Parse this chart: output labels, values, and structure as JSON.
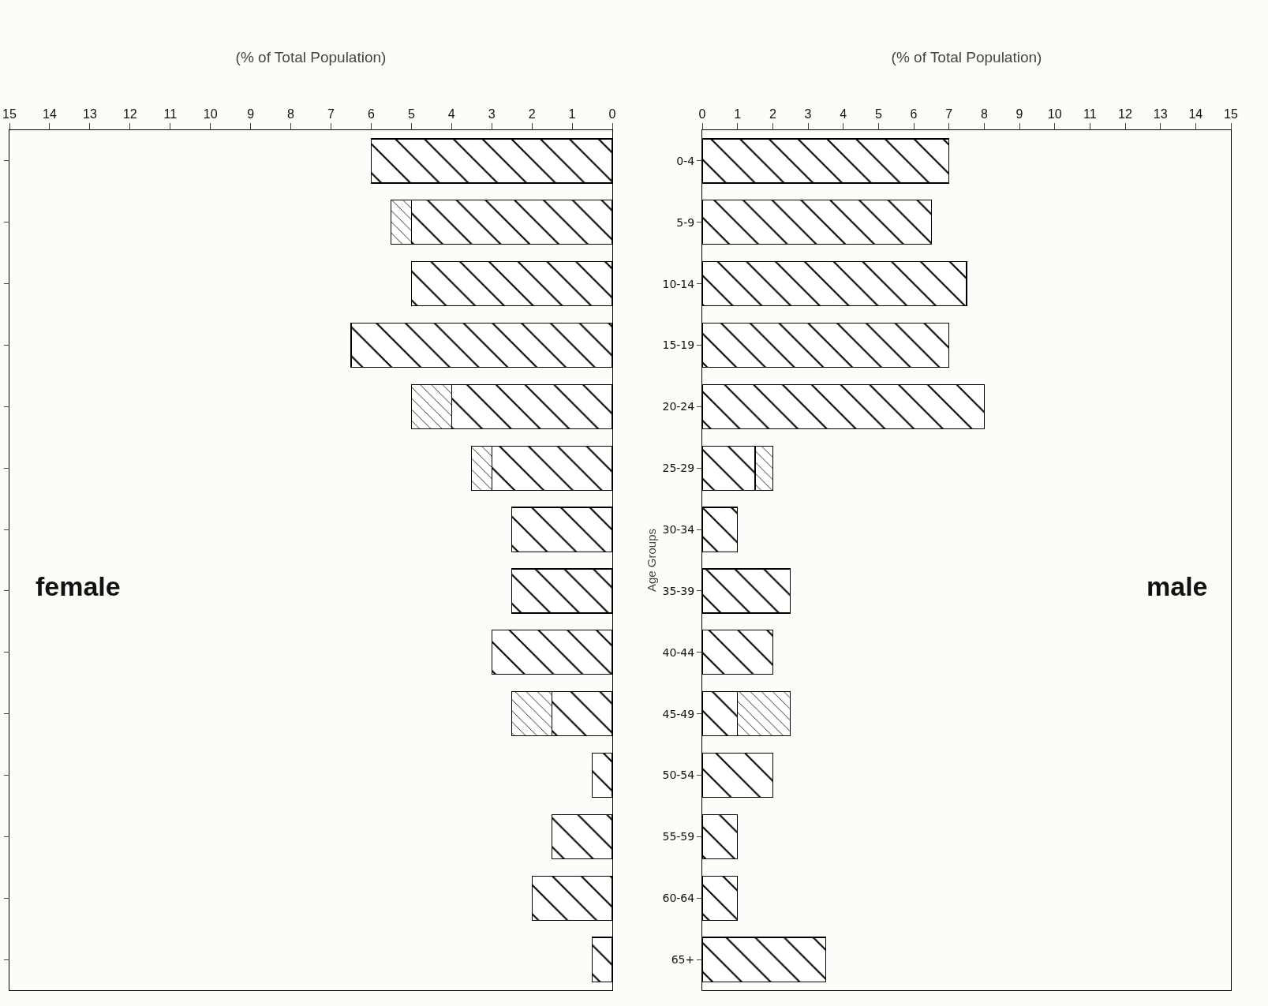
{
  "chart_data": [
    {
      "type": "bar",
      "orientation": "horizontal",
      "stacked": true,
      "xlabel": "(% of Total Population)",
      "annotations": [
        "female"
      ],
      "categories": [
        null,
        null,
        null,
        null,
        null,
        null,
        null,
        null,
        null,
        null,
        null,
        null,
        null,
        null
      ],
      "series": [
        {
          "color": "#000000",
          "values": [
            6,
            5,
            5,
            6.5,
            4,
            3,
            2.5,
            2.5,
            3,
            1.5,
            0.5,
            1.5,
            2,
            0.5
          ]
        },
        {
          "color": "#000000",
          "values": [
            0,
            0.5,
            0,
            0,
            1,
            0.5,
            0,
            0,
            0,
            1,
            0,
            0,
            0,
            0
          ]
        }
      ],
      "xlim": [
        15,
        0
      ],
      "xticks": [
        0,
        1,
        2,
        3,
        4,
        5,
        6,
        7,
        8,
        9,
        10,
        11,
        12,
        13,
        14,
        15
      ],
      "tick_labels": "x",
      "grid": false
    },
    {
      "type": "bar",
      "orientation": "horizontal",
      "stacked": true,
      "xlabel": "(% of Total Population)",
      "ylabel": "Age Groups",
      "annotations": [
        "male"
      ],
      "categories": [
        "0-4",
        "5-9",
        "10-14",
        "15-19",
        "20-24",
        "25-29",
        "30-34",
        "35-39",
        "40-44",
        "45-49",
        "50-54",
        "55-59",
        "60-64",
        "65+"
      ],
      "series": [
        {
          "color": "#000000",
          "values": [
            7,
            6.5,
            7.5,
            7,
            8,
            1.5,
            1,
            2.5,
            2,
            1,
            2,
            1,
            1,
            3.5
          ]
        },
        {
          "color": "#000000",
          "values": [
            0,
            0,
            0,
            0,
            0,
            0.5,
            0,
            0,
            0,
            1.5,
            0,
            0,
            0,
            0
          ]
        }
      ],
      "xlim": [
        0,
        15
      ],
      "xticks": [
        0,
        1,
        2,
        3,
        4,
        5,
        6,
        7,
        8,
        9,
        10,
        11,
        12,
        13,
        14,
        15
      ],
      "grid": false
    }
  ]
}
